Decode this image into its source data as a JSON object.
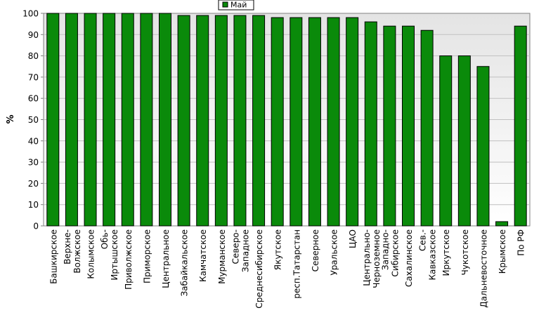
{
  "chart_data": {
    "type": "bar",
    "ylabel": "%",
    "ylim": [
      0,
      100
    ],
    "yticks": [
      0,
      10,
      20,
      30,
      40,
      50,
      60,
      70,
      80,
      90,
      100
    ],
    "grid": true,
    "legend_position": "top-center",
    "bar_color": "#0a8a0a",
    "plot_background_top": "#e4e4e4",
    "plot_background_bottom": "#ffffff",
    "categories": [
      [
        "Башкирское"
      ],
      [
        "Верхне-",
        "Волжское"
      ],
      [
        "Колымское"
      ],
      [
        "Обь-",
        "Иртышское"
      ],
      [
        "Приволжское"
      ],
      [
        "Приморское"
      ],
      [
        "Центральное"
      ],
      [
        "Забайкальское"
      ],
      [
        "Камчатское"
      ],
      [
        "Мурманское"
      ],
      [
        "Северо-",
        "Западное"
      ],
      [
        "Среднесибирское"
      ],
      [
        "Якутское"
      ],
      [
        "респ.Татарстан"
      ],
      [
        "Северное"
      ],
      [
        "Уральское"
      ],
      [
        "ЦАО"
      ],
      [
        "Центрально-",
        "Черноземное"
      ],
      [
        "Западно-",
        "Сибирское"
      ],
      [
        "Сахалинское"
      ],
      [
        "Сев.-",
        "Кавказское"
      ],
      [
        "Иркутское"
      ],
      [
        "Чукотское"
      ],
      [
        "Дальневосточное"
      ],
      [
        "Крымское"
      ],
      [
        "По РФ"
      ]
    ],
    "series": [
      {
        "name": "Май",
        "values": [
          100,
          100,
          100,
          100,
          100,
          100,
          100,
          99,
          99,
          99,
          99,
          99,
          98,
          98,
          98,
          98,
          98,
          96,
          94,
          94,
          92,
          80,
          80,
          75,
          2,
          94
        ]
      }
    ]
  }
}
